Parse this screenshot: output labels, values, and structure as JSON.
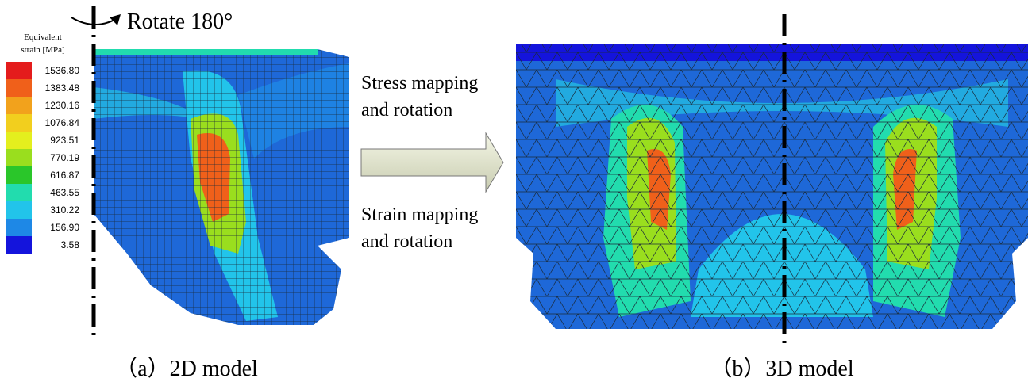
{
  "legend": {
    "title": [
      "Equivalent",
      "strain [MPa]"
    ],
    "items": [
      {
        "label": "1536.80",
        "color": "#e41c1c"
      },
      {
        "label": "1383.48",
        "color": "#f0601a"
      },
      {
        "label": "1230.16",
        "color": "#f2a21c"
      },
      {
        "label": "1076.84",
        "color": "#f2cf1e"
      },
      {
        "label": "923.51",
        "color": "#e4ef1e"
      },
      {
        "label": "770.19",
        "color": "#9ade1e"
      },
      {
        "label": "616.87",
        "color": "#2ac62a"
      },
      {
        "label": "463.55",
        "color": "#22dcae"
      },
      {
        "label": "310.22",
        "color": "#22c4ea"
      },
      {
        "label": "156.90",
        "color": "#1e88e6"
      },
      {
        "label": "3.58",
        "color": "#1414dc"
      }
    ]
  },
  "rotate_label": "Rotate 180°",
  "arrow": {
    "top_label": [
      "Stress mapping",
      "and rotation"
    ],
    "bottom_label": [
      "Strain mapping",
      "and rotation"
    ]
  },
  "panels": [
    {
      "caption": "（a）2D model"
    },
    {
      "caption": "（b）3D model"
    }
  ]
}
